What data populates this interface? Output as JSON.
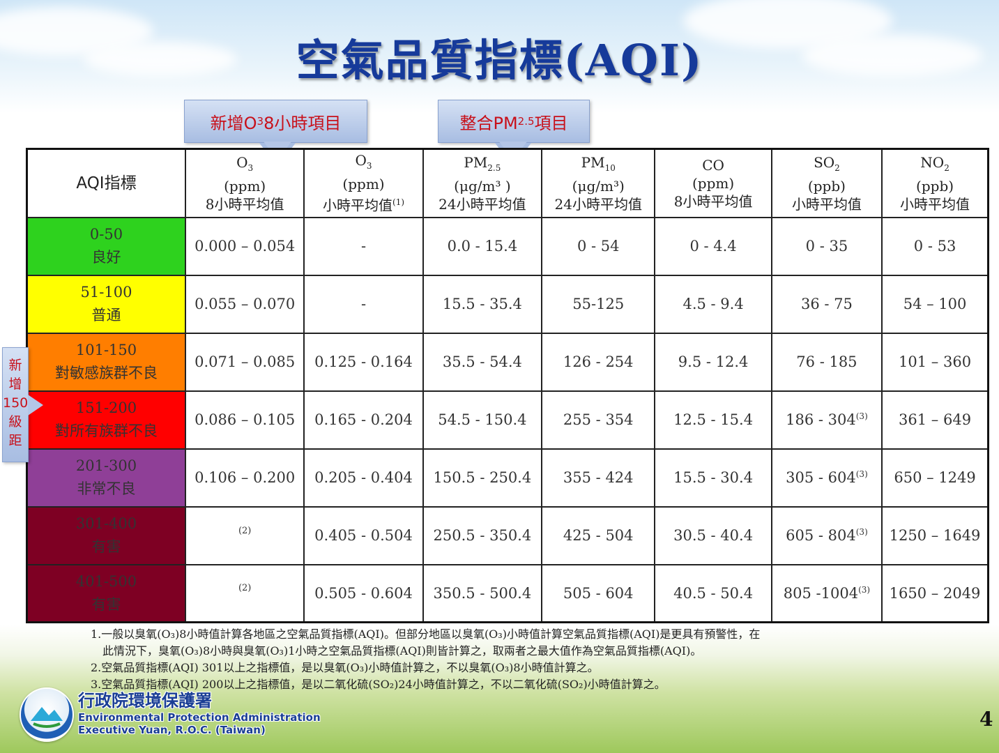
{
  "title": "空氣品質指標(AQI)",
  "callouts": {
    "o3_8hr": {
      "prefix": "新增O",
      "sub": "3",
      "suffix": "8小時項目"
    },
    "pm25": {
      "prefix": "整合PM",
      "sub": "2.5",
      "suffix": "項目"
    }
  },
  "side_tag": [
    "新",
    "增",
    "150",
    "級",
    "距"
  ],
  "table": {
    "header_first": "AQI指標",
    "columns": [
      {
        "name": "O",
        "sub": "3",
        "unit": "(ppm)",
        "period": "8小時平均值",
        "note": ""
      },
      {
        "name": "O",
        "sub": "3",
        "unit": "(ppm)",
        "period": "小時平均值",
        "note": "(1)"
      },
      {
        "name": "PM",
        "sub": "2.5",
        "unit": "(μg/m³ )",
        "period": "24小時平均值",
        "note": ""
      },
      {
        "name": "PM",
        "sub": "10",
        "unit": "(μg/m³)",
        "period": "24小時平均值",
        "note": ""
      },
      {
        "name": "CO",
        "sub": "",
        "unit": "(ppm)",
        "period": "8小時平均值",
        "note": ""
      },
      {
        "name": "SO",
        "sub": "2",
        "unit": "(ppb)",
        "period": "小時平均值",
        "note": ""
      },
      {
        "name": "NO",
        "sub": "2",
        "unit": "(ppb)",
        "period": "小時平均值",
        "note": ""
      }
    ],
    "rows": [
      {
        "range": "0-50",
        "label": "良好",
        "color": "#2ed21e",
        "cells": [
          "0.000 – 0.054",
          "-",
          "0.0 - 15.4",
          "0 - 54",
          "0 - 4.4",
          "0 - 35",
          "0 - 53"
        ]
      },
      {
        "range": "51-100",
        "label": "普通",
        "color": "#ffff00",
        "cells": [
          "0.055 – 0.070",
          "-",
          "15.5 - 35.4",
          "55-125",
          "4.5 - 9.4",
          "36 - 75",
          "54 – 100"
        ]
      },
      {
        "range": "101-150",
        "label": "對敏感族群不良",
        "color": "#ff7e00",
        "cells": [
          "0.071 – 0.085",
          "0.125 - 0.164",
          "35.5 - 54.4",
          "126 - 254",
          "9.5 - 12.4",
          "76 - 185",
          "101 – 360"
        ]
      },
      {
        "range": "151-200",
        "label": "對所有族群不良",
        "color": "#ff0000",
        "cells": [
          "0.086 – 0.105",
          "0.165 - 0.204",
          "54.5 - 150.4",
          "255 - 354",
          "12.5 - 15.4",
          "186 - 304(3)",
          "361 – 649"
        ]
      },
      {
        "range": "201-300",
        "label": "非常不良",
        "color": "#8f3f97",
        "cells": [
          "0.106 – 0.200",
          "0.205 - 0.404",
          "150.5 - 250.4",
          "355 - 424",
          "15.5 - 30.4",
          "305 - 604(3)",
          "650 – 1249"
        ]
      },
      {
        "range": "301-400",
        "label": "有害",
        "color": "#7e0023",
        "cells": [
          "(2)",
          "0.405 - 0.504",
          "250.5 - 350.4",
          "425 - 504",
          "30.5 - 40.4",
          "605 - 804(3)",
          "1250 – 1649"
        ]
      },
      {
        "range": "401-500",
        "label": "有害",
        "color": "#7e0023",
        "cells": [
          "(2)",
          "0.505 - 0.604",
          "350.5 - 500.4",
          "505 - 604",
          "40.5 - 50.4",
          "805 -1004(3)",
          "1650 – 2049"
        ]
      }
    ]
  },
  "notes": [
    "1.一般以臭氧(O₃)8小時值計算各地區之空氣品質指標(AQI)。但部分地區以臭氧(O₃)小時值計算空氣品質指標(AQI)是更具有預警性，在",
    "此情況下，臭氧(O₃)8小時與臭氧(O₃)1小時之空氣品質指標(AQI)則皆計算之，取兩者之最大值作為空氣品質指標(AQI)。",
    "2.空氣品質指標(AQI) 301以上之指標值，是以臭氧(O₃)小時值計算之，不以臭氧(O₃)8小時值計算之。",
    "3.空氣品質指標(AQI) 200以上之指標值，是以二氧化硫(SO₂)24小時值計算之，不以二氧化硫(SO₂)小時值計算之。"
  ],
  "org": {
    "zh": "行政院環境保護署",
    "en1": "Environmental Protection Administration",
    "en2": "Executive Yuan, R.O.C. (Taiwan)"
  },
  "page_number": "4",
  "icons": {
    "logo": "epa-logo-icon"
  }
}
